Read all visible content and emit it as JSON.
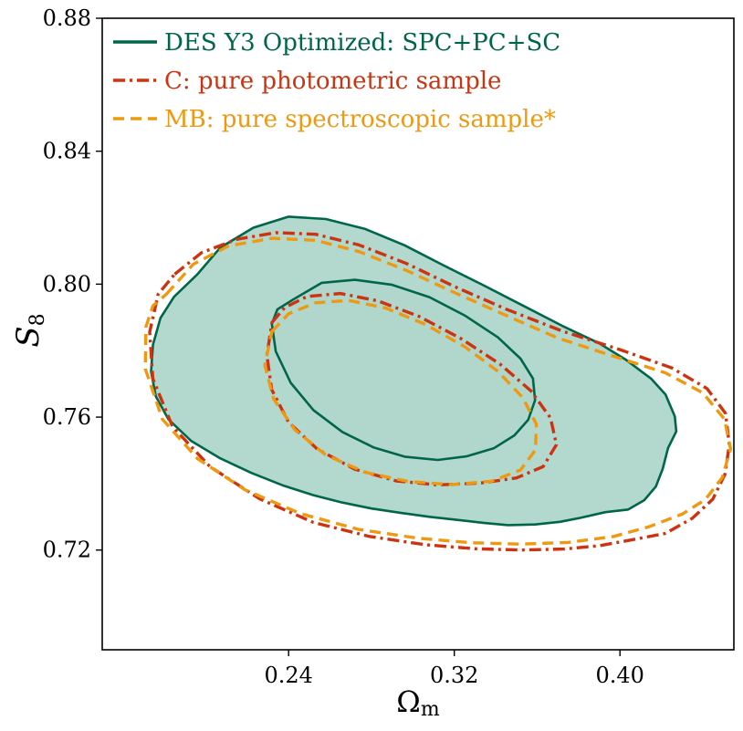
{
  "chart_data": {
    "type": "contour",
    "xlabel": "Ωm",
    "xlabel_main": "Ω",
    "xlabel_sub": "m",
    "ylabel": "S8",
    "ylabel_main": "S",
    "ylabel_sub": "8",
    "xlim": [
      0.15,
      0.455
    ],
    "ylim": [
      0.69,
      0.88
    ],
    "xticks": [
      0.24,
      0.32,
      0.4
    ],
    "xtick_labels": [
      "0.24",
      "0.32",
      "0.40"
    ],
    "yticks": [
      0.72,
      0.76,
      0.8,
      0.84,
      0.88
    ],
    "ytick_labels": [
      "0.72",
      "0.76",
      "0.80",
      "0.84",
      "0.88"
    ],
    "legend_position": "top-left",
    "series": [
      {
        "name": "DES Y3 Optimized: SPC+PC+SC",
        "color": "#00664a",
        "fill": "#afd6cb",
        "style": "solid",
        "contours": {
          "outer": [
            [
              0.196,
              0.803
            ],
            [
              0.207,
              0.811
            ],
            [
              0.223,
              0.817
            ],
            [
              0.24,
              0.8203
            ],
            [
              0.258,
              0.8196
            ],
            [
              0.277,
              0.8166
            ],
            [
              0.296,
              0.8117
            ],
            [
              0.315,
              0.8056
            ],
            [
              0.334,
              0.7997
            ],
            [
              0.353,
              0.7936
            ],
            [
              0.372,
              0.7875
            ],
            [
              0.39,
              0.7822
            ],
            [
              0.403,
              0.7772
            ],
            [
              0.415,
              0.7716
            ],
            [
              0.422,
              0.7668
            ],
            [
              0.4265,
              0.7602
            ],
            [
              0.4272,
              0.7557
            ],
            [
              0.4232,
              0.7507
            ],
            [
              0.4206,
              0.7444
            ],
            [
              0.4173,
              0.7391
            ],
            [
              0.4117,
              0.735
            ],
            [
              0.404,
              0.7322
            ],
            [
              0.393,
              0.7314
            ],
            [
              0.381,
              0.7297
            ],
            [
              0.371,
              0.7285
            ],
            [
              0.359,
              0.7277
            ],
            [
              0.346,
              0.7275
            ],
            [
              0.334,
              0.7282
            ],
            [
              0.321,
              0.7291
            ],
            [
              0.308,
              0.73
            ],
            [
              0.294,
              0.7312
            ],
            [
              0.28,
              0.7325
            ],
            [
              0.266,
              0.7343
            ],
            [
              0.252,
              0.7365
            ],
            [
              0.237,
              0.7395
            ],
            [
              0.222,
              0.7432
            ],
            [
              0.207,
              0.7476
            ],
            [
              0.193,
              0.7528
            ],
            [
              0.182,
              0.7593
            ],
            [
              0.1759,
              0.7662
            ],
            [
              0.1736,
              0.7737
            ],
            [
              0.1745,
              0.7818
            ],
            [
              0.1781,
              0.7898
            ],
            [
              0.1847,
              0.7962
            ],
            [
              0.196,
              0.803
            ]
          ],
          "inner": [
            [
              0.242,
              0.7953
            ],
            [
              0.256,
              0.8004
            ],
            [
              0.272,
              0.8013
            ],
            [
              0.29,
              0.7998
            ],
            [
              0.308,
              0.7961
            ],
            [
              0.325,
              0.7906
            ],
            [
              0.341,
              0.784
            ],
            [
              0.352,
              0.7776
            ],
            [
              0.358,
              0.7716
            ],
            [
              0.359,
              0.7651
            ],
            [
              0.3557,
              0.7592
            ],
            [
              0.349,
              0.7545
            ],
            [
              0.339,
              0.7506
            ],
            [
              0.326,
              0.7482
            ],
            [
              0.312,
              0.7471
            ],
            [
              0.296,
              0.7481
            ],
            [
              0.281,
              0.7509
            ],
            [
              0.266,
              0.7555
            ],
            [
              0.252,
              0.7621
            ],
            [
              0.241,
              0.7703
            ],
            [
              0.2338,
              0.7798
            ],
            [
              0.2319,
              0.7881
            ],
            [
              0.2346,
              0.7924
            ],
            [
              0.242,
              0.7953
            ]
          ]
        }
      },
      {
        "name": "C: pure photometric sample",
        "color": "#cc3311",
        "style": "dashdot",
        "contours": {
          "outer": [
            [
              0.185,
              0.803
            ],
            [
              0.198,
              0.8095
            ],
            [
              0.215,
              0.8135
            ],
            [
              0.234,
              0.8155
            ],
            [
              0.253,
              0.815
            ],
            [
              0.274,
              0.8118
            ],
            [
              0.297,
              0.8062
            ],
            [
              0.32,
              0.7993
            ],
            [
              0.345,
              0.7925
            ],
            [
              0.372,
              0.7859
            ],
            [
              0.4,
              0.7803
            ],
            [
              0.425,
              0.7748
            ],
            [
              0.442,
              0.7686
            ],
            [
              0.451,
              0.7611
            ],
            [
              0.4528,
              0.7517
            ],
            [
              0.4507,
              0.7428
            ],
            [
              0.4448,
              0.7353
            ],
            [
              0.435,
              0.7296
            ],
            [
              0.422,
              0.725
            ],
            [
              0.405,
              0.723
            ],
            [
              0.39,
              0.7213
            ],
            [
              0.373,
              0.7203
            ],
            [
              0.352,
              0.72
            ],
            [
              0.33,
              0.7204
            ],
            [
              0.306,
              0.7216
            ],
            [
              0.279,
              0.7241
            ],
            [
              0.252,
              0.7283
            ],
            [
              0.226,
              0.7354
            ],
            [
              0.202,
              0.7451
            ],
            [
              0.184,
              0.7571
            ],
            [
              0.1744,
              0.7716
            ],
            [
              0.1729,
              0.7856
            ],
            [
              0.177,
              0.797
            ],
            [
              0.185,
              0.803
            ]
          ],
          "inner": [
            [
              0.232,
              0.7885
            ],
            [
              0.238,
              0.7929
            ],
            [
              0.249,
              0.7963
            ],
            [
              0.265,
              0.7972
            ],
            [
              0.283,
              0.795
            ],
            [
              0.303,
              0.7903
            ],
            [
              0.323,
              0.7837
            ],
            [
              0.342,
              0.776
            ],
            [
              0.357,
              0.7679
            ],
            [
              0.3665,
              0.7597
            ],
            [
              0.3693,
              0.7517
            ],
            [
              0.3629,
              0.7451
            ],
            [
              0.35,
              0.7417
            ],
            [
              0.333,
              0.7402
            ],
            [
              0.312,
              0.7396
            ],
            [
              0.292,
              0.7408
            ],
            [
              0.272,
              0.7443
            ],
            [
              0.254,
              0.7503
            ],
            [
              0.24,
              0.7584
            ],
            [
              0.2318,
              0.7683
            ],
            [
              0.2295,
              0.7786
            ],
            [
              0.232,
              0.7885
            ]
          ]
        }
      },
      {
        "name": "MB: pure spectroscopic sample*",
        "color": "#ee9911",
        "style": "dashed",
        "contours": {
          "outer": [
            [
              0.181,
              0.797
            ],
            [
              0.194,
              0.806
            ],
            [
              0.211,
              0.8115
            ],
            [
              0.232,
              0.8138
            ],
            [
              0.253,
              0.8132
            ],
            [
              0.274,
              0.8098
            ],
            [
              0.297,
              0.8041
            ],
            [
              0.32,
              0.7975
            ],
            [
              0.345,
              0.7906
            ],
            [
              0.37,
              0.7838
            ],
            [
              0.397,
              0.7783
            ],
            [
              0.422,
              0.7733
            ],
            [
              0.44,
              0.7673
            ],
            [
              0.4504,
              0.7594
            ],
            [
              0.4534,
              0.7505
            ],
            [
              0.4494,
              0.7418
            ],
            [
              0.4412,
              0.7352
            ],
            [
              0.43,
              0.7308
            ],
            [
              0.414,
              0.727
            ],
            [
              0.397,
              0.7241
            ],
            [
              0.375,
              0.7223
            ],
            [
              0.352,
              0.7218
            ],
            [
              0.328,
              0.7222
            ],
            [
              0.302,
              0.7236
            ],
            [
              0.274,
              0.7262
            ],
            [
              0.246,
              0.7309
            ],
            [
              0.219,
              0.7381
            ],
            [
              0.196,
              0.7475
            ],
            [
              0.179,
              0.7594
            ],
            [
              0.1708,
              0.7745
            ],
            [
              0.1711,
              0.7872
            ],
            [
              0.1745,
              0.7935
            ],
            [
              0.181,
              0.797
            ]
          ],
          "inner": [
            [
              0.232,
              0.7858
            ],
            [
              0.24,
              0.7911
            ],
            [
              0.253,
              0.7944
            ],
            [
              0.269,
              0.7951
            ],
            [
              0.287,
              0.7928
            ],
            [
              0.306,
              0.7879
            ],
            [
              0.325,
              0.7812
            ],
            [
              0.341,
              0.7738
            ],
            [
              0.353,
              0.7659
            ],
            [
              0.3596,
              0.7579
            ],
            [
              0.3592,
              0.7501
            ],
            [
              0.352,
              0.7441
            ],
            [
              0.338,
              0.7407
            ],
            [
              0.319,
              0.7397
            ],
            [
              0.298,
              0.7406
            ],
            [
              0.277,
              0.7434
            ],
            [
              0.258,
              0.7486
            ],
            [
              0.243,
              0.7562
            ],
            [
              0.2328,
              0.7654
            ],
            [
              0.2285,
              0.7756
            ],
            [
              0.232,
              0.7858
            ]
          ]
        }
      }
    ]
  }
}
